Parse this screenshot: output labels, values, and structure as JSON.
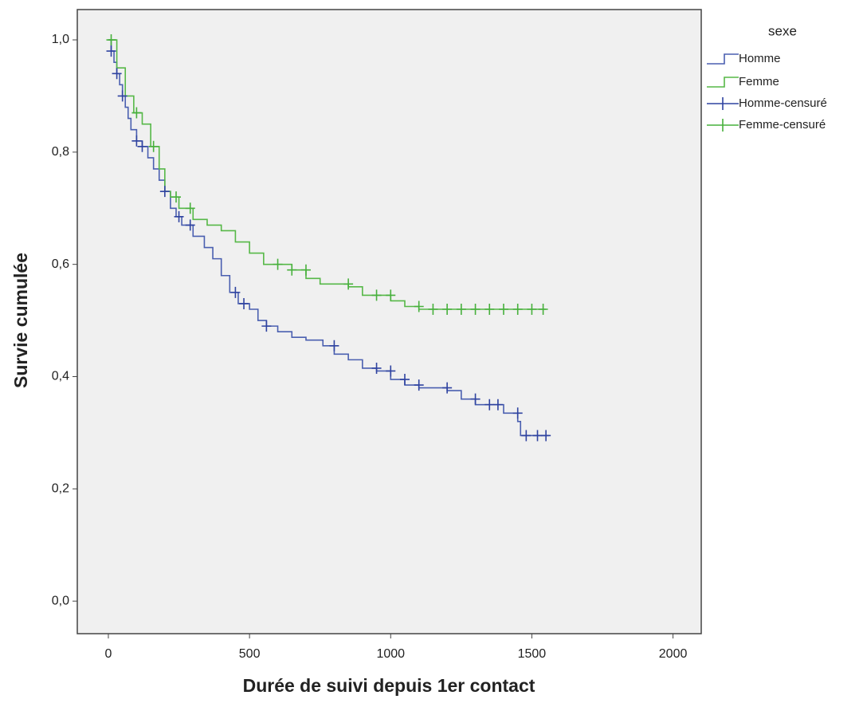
{
  "chart_data": {
    "type": "step",
    "xlabel": "Durée de suivi depuis 1er contact",
    "ylabel": "Survie cumulée",
    "legend_title": "sexe",
    "legend": "outside-right",
    "xlim": [
      -110,
      2100
    ],
    "xticks": [
      0,
      500,
      1000,
      1500,
      2000
    ],
    "ylim": [
      -0.058,
      1.054
    ],
    "yticks": [
      {
        "value": 0,
        "label": "0,0"
      },
      {
        "value": 0.2,
        "label": "0,2"
      },
      {
        "value": 0.4,
        "label": "0,4"
      },
      {
        "value": 0.6,
        "label": "0,6"
      },
      {
        "value": 0.8,
        "label": "0,8"
      },
      {
        "value": 1,
        "label": "1,0"
      }
    ],
    "series": [
      {
        "name": "Homme",
        "color": "#4a5fb0",
        "style": "line",
        "x": [
          0,
          10,
          20,
          30,
          40,
          50,
          60,
          70,
          80,
          100,
          120,
          140,
          160,
          180,
          200,
          220,
          240,
          260,
          300,
          340,
          370,
          400,
          430,
          460,
          500,
          530,
          560,
          600,
          650,
          700,
          760,
          800,
          850,
          900,
          950,
          1000,
          1050,
          1100,
          1200,
          1250,
          1300,
          1400,
          1450,
          1460,
          1560
        ],
        "values": [
          1.0,
          0.98,
          0.96,
          0.94,
          0.92,
          0.9,
          0.88,
          0.86,
          0.84,
          0.82,
          0.81,
          0.79,
          0.77,
          0.75,
          0.73,
          0.7,
          0.685,
          0.67,
          0.65,
          0.63,
          0.61,
          0.58,
          0.55,
          0.53,
          0.52,
          0.5,
          0.49,
          0.48,
          0.47,
          0.465,
          0.455,
          0.44,
          0.43,
          0.415,
          0.41,
          0.395,
          0.385,
          0.38,
          0.375,
          0.36,
          0.35,
          0.335,
          0.32,
          0.295,
          0.295
        ]
      },
      {
        "name": "Femme",
        "color": "#56b847",
        "style": "line",
        "x": [
          0,
          30,
          60,
          90,
          120,
          150,
          180,
          200,
          220,
          250,
          300,
          350,
          400,
          450,
          500,
          550,
          650,
          700,
          750,
          850,
          900,
          1000,
          1050,
          1100,
          1550
        ],
        "values": [
          1.0,
          0.95,
          0.9,
          0.87,
          0.85,
          0.81,
          0.77,
          0.73,
          0.72,
          0.7,
          0.68,
          0.67,
          0.66,
          0.64,
          0.62,
          0.6,
          0.59,
          0.575,
          0.565,
          0.56,
          0.545,
          0.535,
          0.525,
          0.52,
          0.52
        ]
      },
      {
        "name": "Homme-censuré",
        "color": "#2f43a0",
        "style": "censor",
        "x": [
          10,
          30,
          50,
          100,
          120,
          200,
          250,
          290,
          450,
          480,
          560,
          800,
          950,
          1000,
          1050,
          1100,
          1200,
          1300,
          1350,
          1380,
          1450,
          1480,
          1520,
          1550
        ],
        "values": [
          0.98,
          0.94,
          0.9,
          0.82,
          0.81,
          0.73,
          0.685,
          0.67,
          0.55,
          0.53,
          0.49,
          0.455,
          0.415,
          0.41,
          0.395,
          0.385,
          0.38,
          0.36,
          0.35,
          0.35,
          0.335,
          0.295,
          0.295,
          0.295
        ]
      },
      {
        "name": "Femme-censuré",
        "color": "#47b03c",
        "style": "censor",
        "x": [
          10,
          100,
          160,
          240,
          290,
          600,
          650,
          700,
          850,
          950,
          1000,
          1100,
          1150,
          1200,
          1250,
          1300,
          1350,
          1400,
          1450,
          1500,
          1540
        ],
        "values": [
          1.0,
          0.87,
          0.81,
          0.72,
          0.7,
          0.6,
          0.59,
          0.59,
          0.565,
          0.545,
          0.545,
          0.525,
          0.52,
          0.52,
          0.52,
          0.52,
          0.52,
          0.52,
          0.52,
          0.52,
          0.52
        ]
      }
    ]
  }
}
